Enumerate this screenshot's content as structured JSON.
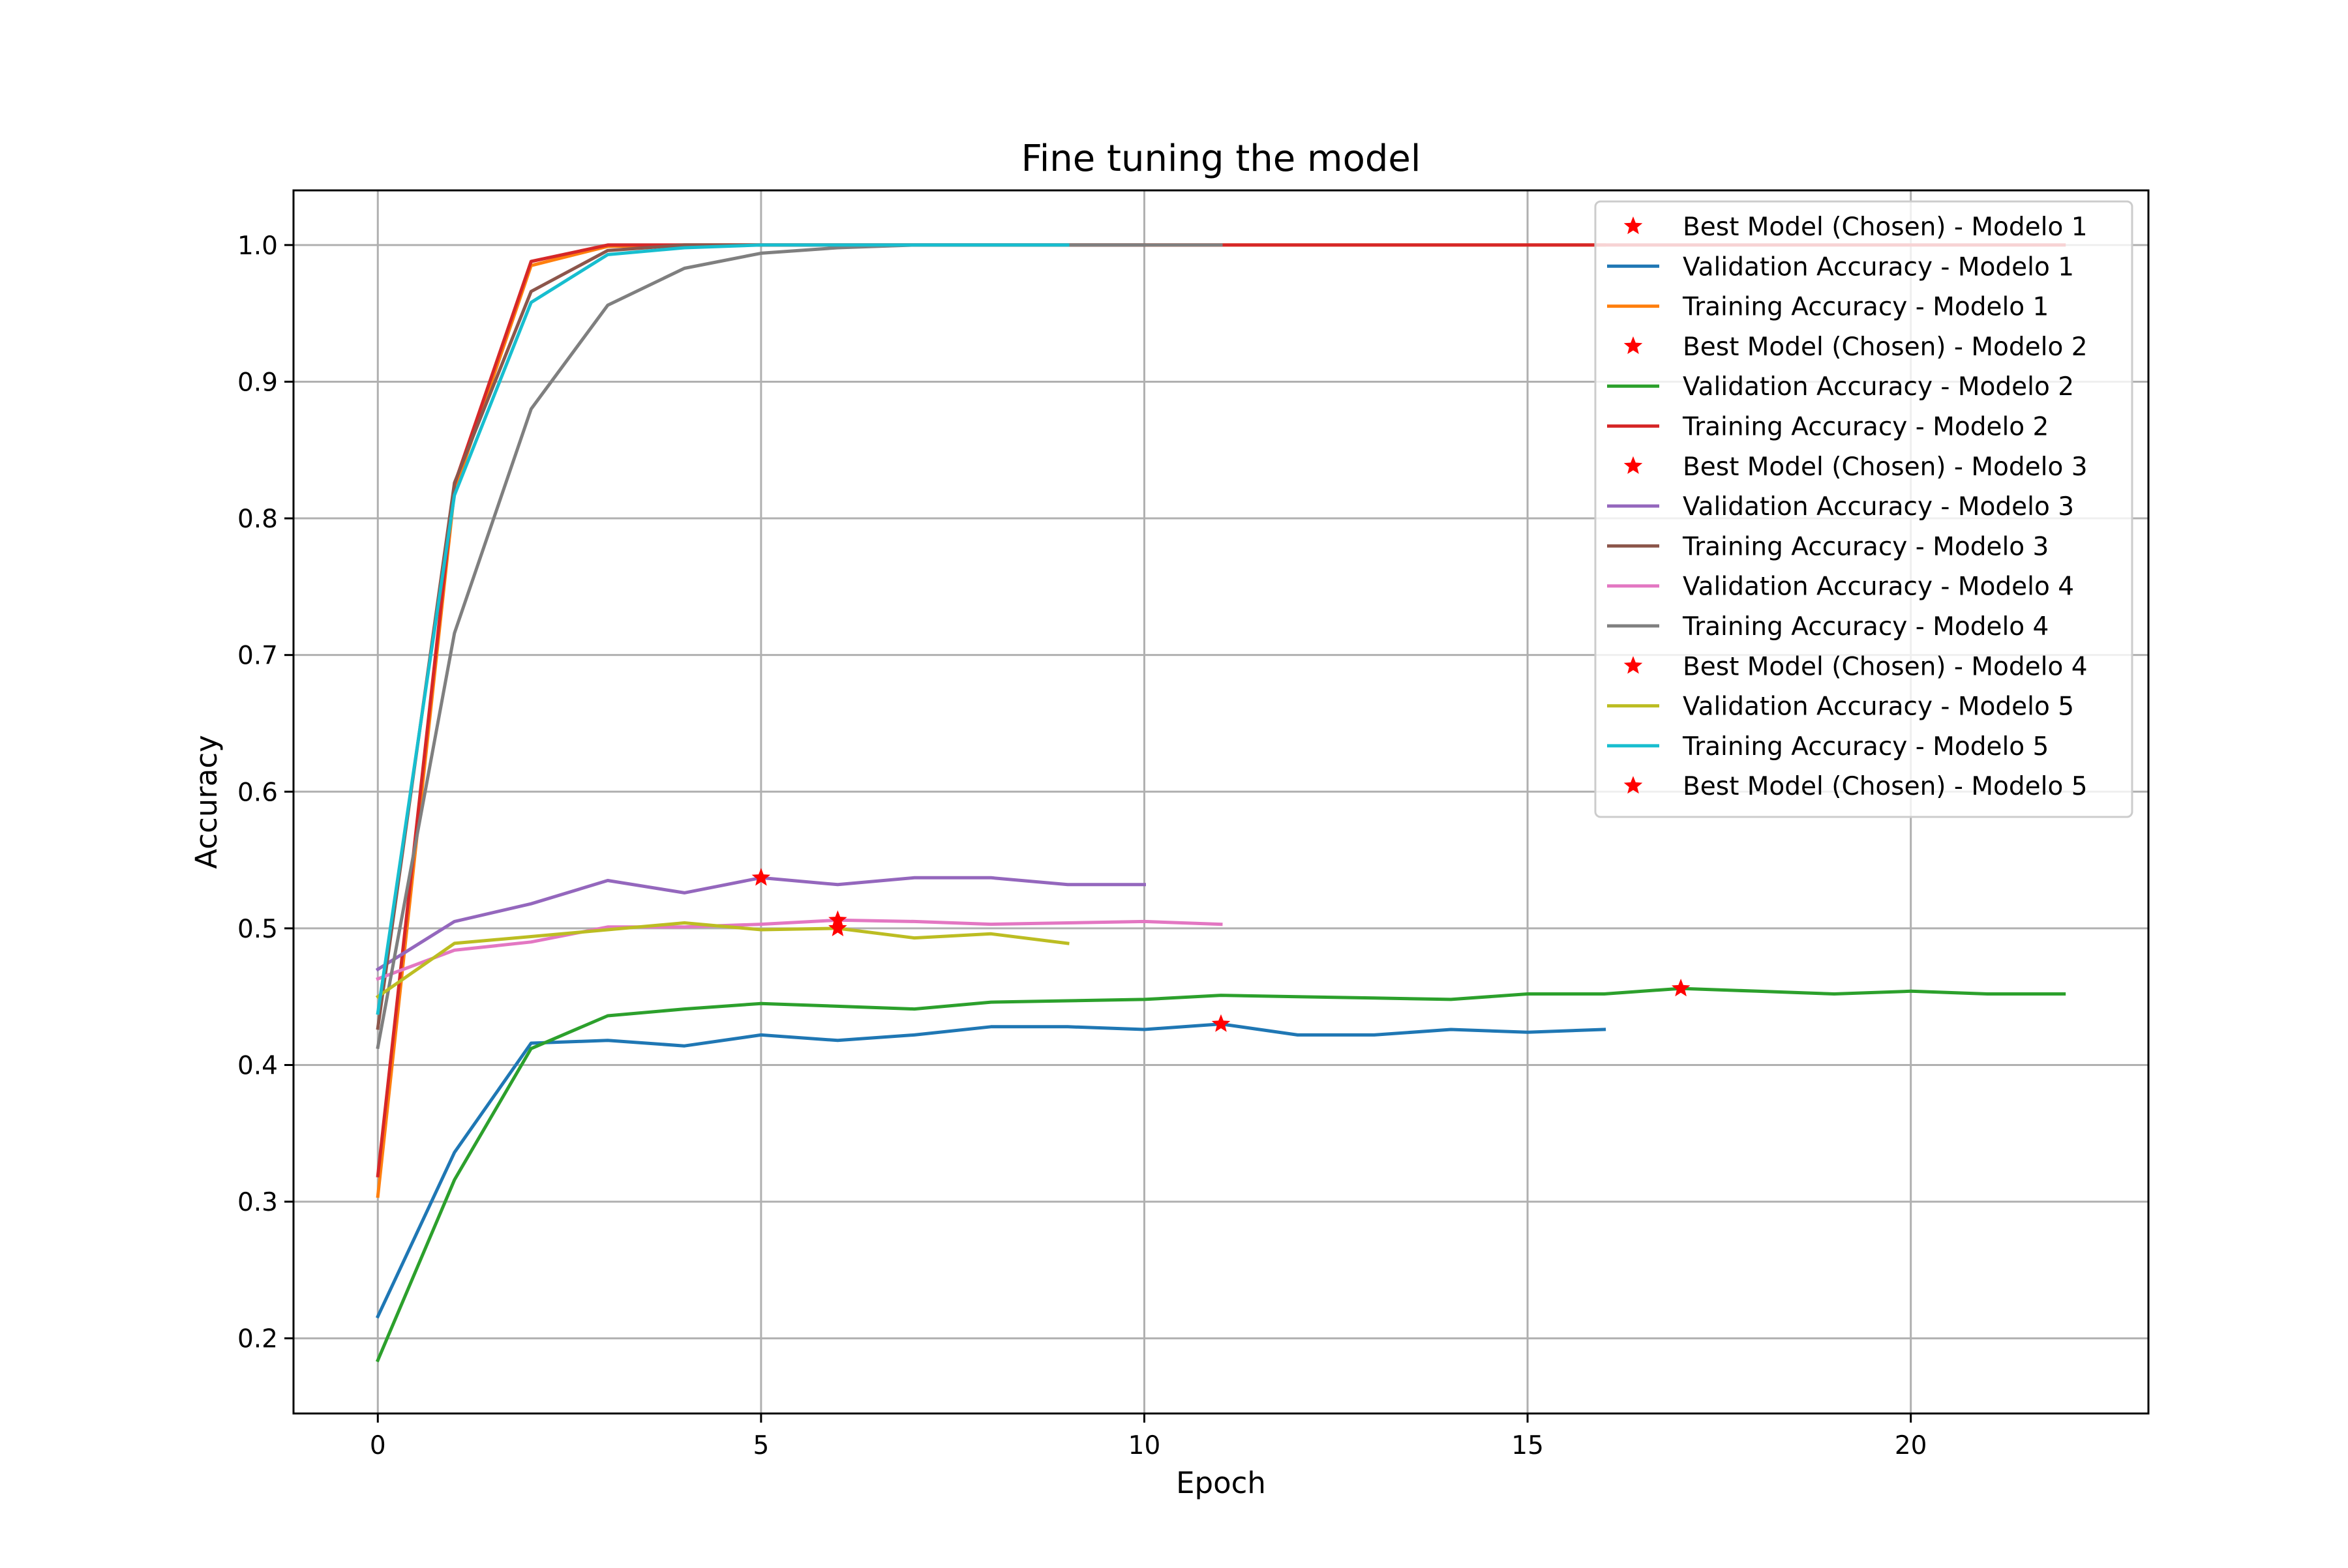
{
  "chart_data": {
    "type": "line",
    "title": "Fine tuning the model",
    "xlabel": "Epoch",
    "ylabel": "Accuracy",
    "xlim": [
      -1.1,
      23.1
    ],
    "ylim": [
      0.145,
      1.04
    ],
    "xticks": [
      0,
      5,
      10,
      15,
      20
    ],
    "xtick_labels": [
      "0",
      "5",
      "10",
      "15",
      "20"
    ],
    "yticks": [
      0.2,
      0.3,
      0.4,
      0.5,
      0.6,
      0.7,
      0.8,
      0.9,
      1.0
    ],
    "ytick_labels": [
      "0.2",
      "0.3",
      "0.4",
      "0.5",
      "0.6",
      "0.7",
      "0.8",
      "0.9",
      "1.0"
    ],
    "grid": true,
    "legend_position": "top-right",
    "legend": [
      {
        "label": "Best Model (Chosen) - Modelo 1",
        "kind": "marker",
        "color": "#ff0000"
      },
      {
        "label": "Validation Accuracy - Modelo 1",
        "kind": "line",
        "color": "#1f77b4"
      },
      {
        "label": "Training Accuracy - Modelo 1",
        "kind": "line",
        "color": "#ff7f0e"
      },
      {
        "label": "Best Model (Chosen) - Modelo 2",
        "kind": "marker",
        "color": "#ff0000"
      },
      {
        "label": "Validation Accuracy - Modelo 2",
        "kind": "line",
        "color": "#2ca02c"
      },
      {
        "label": "Training Accuracy - Modelo 2",
        "kind": "line",
        "color": "#d62728"
      },
      {
        "label": "Best Model (Chosen) - Modelo 3",
        "kind": "marker",
        "color": "#ff0000"
      },
      {
        "label": "Validation Accuracy - Modelo 3",
        "kind": "line",
        "color": "#9467bd"
      },
      {
        "label": "Training Accuracy - Modelo 3",
        "kind": "line",
        "color": "#8c564b"
      },
      {
        "label": "Validation Accuracy - Modelo 4",
        "kind": "line",
        "color": "#e377c2"
      },
      {
        "label": "Training Accuracy - Modelo 4",
        "kind": "line",
        "color": "#7f7f7f"
      },
      {
        "label": "Best Model (Chosen) - Modelo 4",
        "kind": "marker",
        "color": "#ff0000"
      },
      {
        "label": "Validation Accuracy - Modelo 5",
        "kind": "line",
        "color": "#bcbd22"
      },
      {
        "label": "Training Accuracy - Modelo 5",
        "kind": "line",
        "color": "#17becf"
      },
      {
        "label": "Best Model (Chosen) - Modelo 5",
        "kind": "marker",
        "color": "#ff0000"
      }
    ],
    "series": [
      {
        "name": "Validation Accuracy - Modelo 1",
        "color": "#1f77b4",
        "x": [
          0,
          1,
          2,
          3,
          4,
          5,
          6,
          7,
          8,
          9,
          10,
          11,
          12,
          13,
          14,
          15,
          16
        ],
        "y": [
          0.216,
          0.336,
          0.416,
          0.418,
          0.414,
          0.422,
          0.418,
          0.422,
          0.428,
          0.428,
          0.426,
          0.43,
          0.422,
          0.422,
          0.426,
          0.424,
          0.426
        ]
      },
      {
        "name": "Training Accuracy - Modelo 1",
        "color": "#ff7f0e",
        "x": [
          0,
          1,
          2,
          3,
          4,
          5,
          6,
          7,
          8,
          9,
          10,
          11,
          12,
          13,
          14,
          15,
          16
        ],
        "y": [
          0.304,
          0.82,
          0.985,
          0.999,
          1.0,
          1.0,
          1.0,
          1.0,
          1.0,
          1.0,
          1.0,
          1.0,
          1.0,
          1.0,
          1.0,
          1.0,
          1.0
        ]
      },
      {
        "name": "Validation Accuracy - Modelo 2",
        "color": "#2ca02c",
        "x": [
          0,
          1,
          2,
          3,
          4,
          5,
          6,
          7,
          8,
          9,
          10,
          11,
          12,
          13,
          14,
          15,
          16,
          17,
          18,
          19,
          20,
          21,
          22
        ],
        "y": [
          0.184,
          0.316,
          0.412,
          0.436,
          0.441,
          0.445,
          0.443,
          0.441,
          0.446,
          0.447,
          0.448,
          0.451,
          0.45,
          0.449,
          0.448,
          0.452,
          0.452,
          0.456,
          0.454,
          0.452,
          0.454,
          0.452,
          0.452
        ]
      },
      {
        "name": "Training Accuracy - Modelo 2",
        "color": "#d62728",
        "x": [
          0,
          1,
          2,
          3,
          4,
          5,
          6,
          7,
          8,
          9,
          10,
          11,
          12,
          13,
          14,
          15,
          16,
          17,
          18,
          19,
          20,
          21,
          22
        ],
        "y": [
          0.319,
          0.825,
          0.988,
          1.0,
          1.0,
          1.0,
          1.0,
          1.0,
          1.0,
          1.0,
          1.0,
          1.0,
          1.0,
          1.0,
          1.0,
          1.0,
          1.0,
          1.0,
          1.0,
          1.0,
          1.0,
          1.0,
          1.0
        ]
      },
      {
        "name": "Validation Accuracy - Modelo 3",
        "color": "#9467bd",
        "x": [
          0,
          1,
          2,
          3,
          4,
          5,
          6,
          7,
          8,
          9,
          10
        ],
        "y": [
          0.47,
          0.505,
          0.518,
          0.535,
          0.526,
          0.537,
          0.532,
          0.537,
          0.537,
          0.532,
          0.532
        ]
      },
      {
        "name": "Training Accuracy - Modelo 3",
        "color": "#8c564b",
        "x": [
          0,
          1,
          2,
          3,
          4,
          5,
          6,
          7,
          8,
          9,
          10
        ],
        "y": [
          0.427,
          0.826,
          0.966,
          0.996,
          1.0,
          1.0,
          1.0,
          1.0,
          1.0,
          1.0,
          1.0
        ]
      },
      {
        "name": "Validation Accuracy - Modelo 4",
        "color": "#e377c2",
        "x": [
          0,
          1,
          2,
          3,
          4,
          5,
          6,
          7,
          8,
          9,
          10,
          11
        ],
        "y": [
          0.463,
          0.484,
          0.49,
          0.501,
          0.501,
          0.503,
          0.506,
          0.505,
          0.503,
          0.504,
          0.505,
          0.503
        ]
      },
      {
        "name": "Training Accuracy - Modelo 4",
        "color": "#7f7f7f",
        "x": [
          0,
          1,
          2,
          3,
          4,
          5,
          6,
          7,
          8,
          9,
          10,
          11
        ],
        "y": [
          0.413,
          0.716,
          0.88,
          0.956,
          0.983,
          0.994,
          0.998,
          1.0,
          1.0,
          1.0,
          1.0,
          1.0
        ]
      },
      {
        "name": "Validation Accuracy - Modelo 5",
        "color": "#bcbd22",
        "x": [
          0,
          1,
          2,
          3,
          4,
          5,
          6,
          7,
          8,
          9
        ],
        "y": [
          0.45,
          0.489,
          0.494,
          0.499,
          0.504,
          0.499,
          0.5,
          0.493,
          0.496,
          0.489
        ]
      },
      {
        "name": "Training Accuracy - Modelo 5",
        "color": "#17becf",
        "x": [
          0,
          1,
          2,
          3,
          4,
          5,
          6,
          7,
          8,
          9
        ],
        "y": [
          0.438,
          0.817,
          0.958,
          0.993,
          0.998,
          1.0,
          1.0,
          1.0,
          1.0,
          1.0
        ]
      }
    ],
    "best_points": [
      {
        "name": "Best Model (Chosen) - Modelo 1",
        "x": 11,
        "y": 0.43
      },
      {
        "name": "Best Model (Chosen) - Modelo 2",
        "x": 17,
        "y": 0.456
      },
      {
        "name": "Best Model (Chosen) - Modelo 3",
        "x": 5,
        "y": 0.537
      },
      {
        "name": "Best Model (Chosen) - Modelo 4",
        "x": 6,
        "y": 0.506
      },
      {
        "name": "Best Model (Chosen) - Modelo 5",
        "x": 6,
        "y": 0.5
      }
    ],
    "marker_color": "#ff0000",
    "grid_color": "#b0b0b0"
  }
}
